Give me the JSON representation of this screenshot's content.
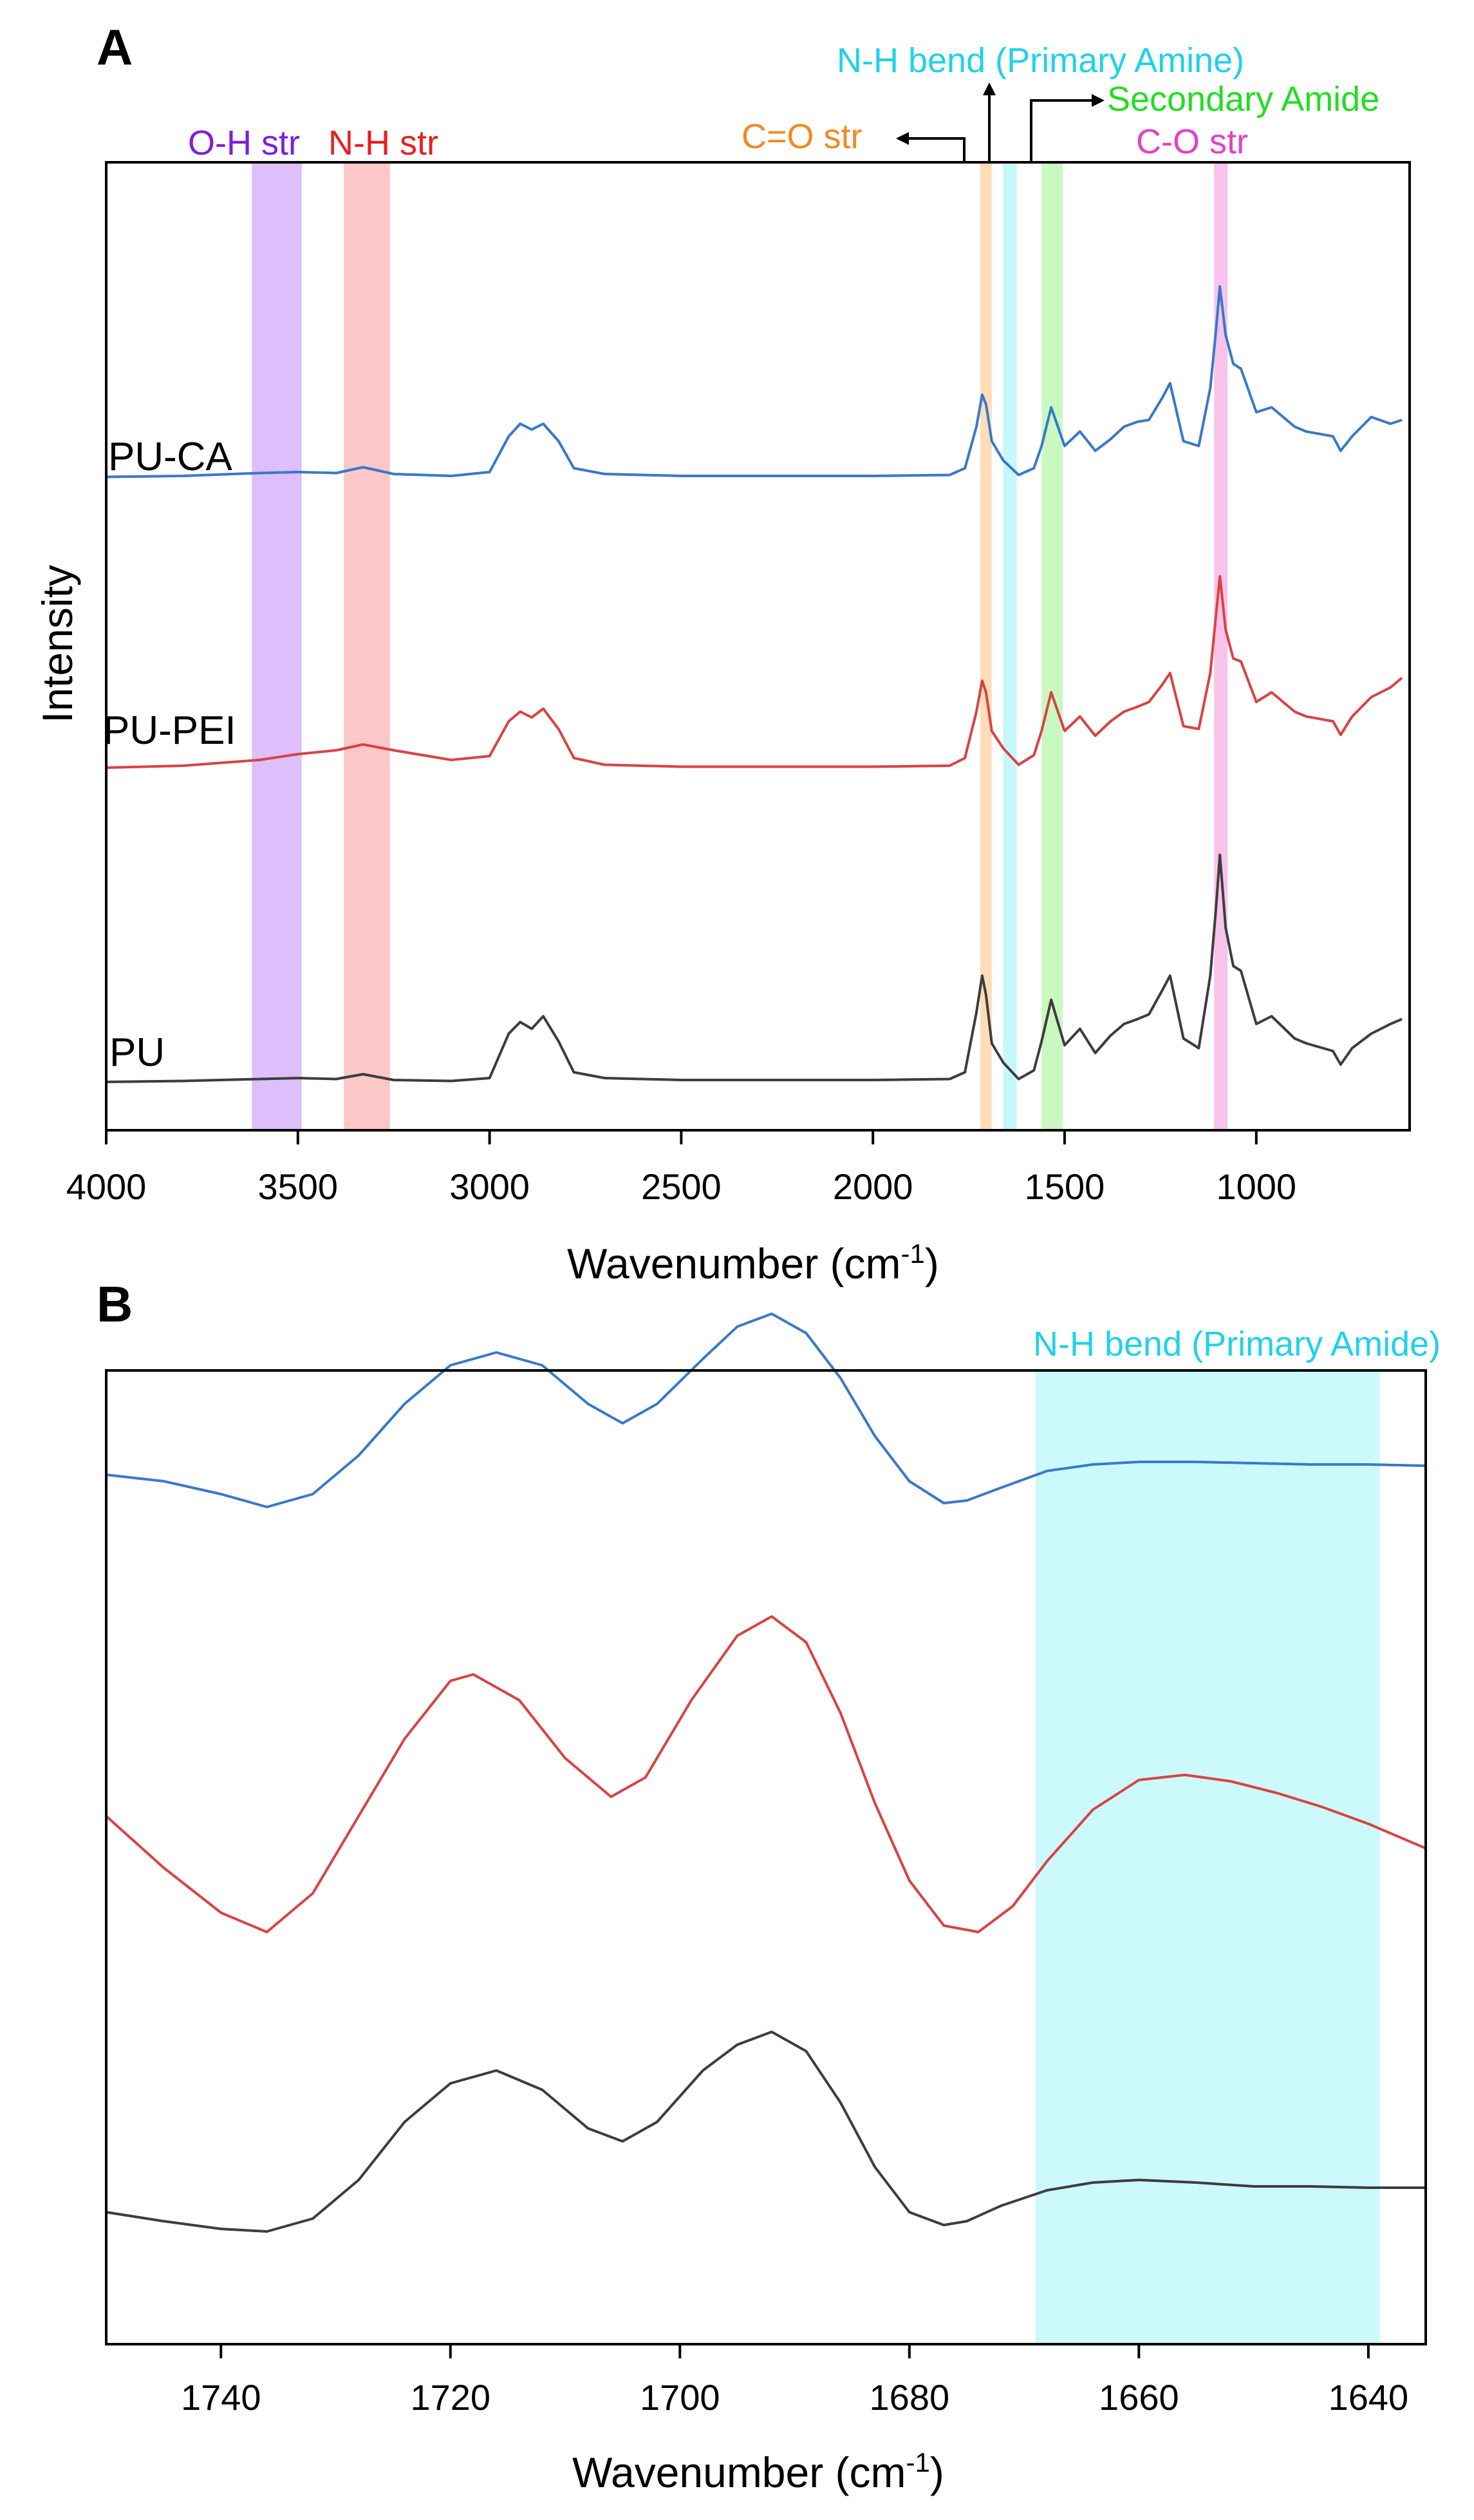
{
  "colors": {
    "pu_ca": "#3a78c9",
    "pu_pei": "#d94343",
    "pu": "#3d3d3d",
    "oh_band": "#d8b8fb",
    "nh_str_band": "#fbc1c1",
    "co_band": "#fcd9b0",
    "nh_bend_band": "#bff7fa",
    "sec_amide_band": "#c3f7b9",
    "c_o_band": "#f7bde8",
    "oh_text": "#7b1fe0",
    "nh_str_text": "#e62020",
    "co_text": "#f08a24",
    "nh_bend_text": "#1fd2e8",
    "sec_amide_text": "#22dd22",
    "c_o_text": "#e83fc2"
  },
  "chart_data": [
    {
      "panel": "A",
      "type": "line",
      "xlabel": "Wavenumber (cm",
      "xlabel_superscript": "-1",
      "xlabel_suffix": ")",
      "ylabel": "Intensity",
      "xlim": [
        4000,
        600
      ],
      "xticks": [
        4000,
        3500,
        3000,
        2500,
        2000,
        1500,
        1000
      ],
      "xtick_labels": [
        "4000",
        "3500",
        "3000",
        "2500",
        "2000",
        "1500",
        "1000"
      ],
      "series": [
        {
          "name": "PU-CA",
          "label": "PU-CA",
          "color_key": "pu_ca",
          "x": [
            4000,
            3800,
            3600,
            3500,
            3400,
            3330,
            3250,
            3100,
            3000,
            2950,
            2920,
            2890,
            2860,
            2820,
            2780,
            2700,
            2500,
            2000,
            1800,
            1760,
            1730,
            1715,
            1705,
            1690,
            1660,
            1620,
            1580,
            1560,
            1535,
            1500,
            1460,
            1420,
            1380,
            1345,
            1310,
            1280,
            1245,
            1225,
            1190,
            1150,
            1120,
            1105,
            1095,
            1080,
            1060,
            1040,
            1000,
            960,
            900,
            870,
            800,
            780,
            750,
            700,
            650,
            620
          ],
          "y": [
            0.03,
            0.04,
            0.07,
            0.08,
            0.07,
            0.13,
            0.06,
            0.04,
            0.08,
            0.45,
            0.58,
            0.52,
            0.58,
            0.4,
            0.12,
            0.06,
            0.04,
            0.04,
            0.05,
            0.12,
            0.55,
            0.88,
            0.78,
            0.4,
            0.2,
            0.05,
            0.12,
            0.35,
            0.75,
            0.35,
            0.5,
            0.3,
            0.42,
            0.55,
            0.6,
            0.62,
            0.85,
            1.0,
            0.4,
            0.35,
            0.95,
            1.55,
            2.0,
            1.5,
            1.2,
            1.15,
            0.7,
            0.75,
            0.55,
            0.5,
            0.45,
            0.3,
            0.45,
            0.65,
            0.58,
            0.62
          ]
        },
        {
          "name": "PU-PEI",
          "label": "PU-PEI",
          "color_key": "pu_pei",
          "x": [
            4000,
            3800,
            3600,
            3500,
            3400,
            3330,
            3250,
            3100,
            3000,
            2950,
            2920,
            2890,
            2860,
            2820,
            2780,
            2700,
            2500,
            2000,
            1800,
            1760,
            1730,
            1715,
            1705,
            1690,
            1660,
            1620,
            1580,
            1560,
            1535,
            1500,
            1460,
            1420,
            1380,
            1345,
            1310,
            1280,
            1245,
            1225,
            1190,
            1150,
            1120,
            1105,
            1095,
            1080,
            1060,
            1040,
            1000,
            960,
            900,
            870,
            800,
            780,
            750,
            700,
            650,
            620
          ],
          "y": [
            0.02,
            0.04,
            0.1,
            0.16,
            0.2,
            0.26,
            0.2,
            0.1,
            0.14,
            0.5,
            0.6,
            0.54,
            0.63,
            0.42,
            0.12,
            0.05,
            0.03,
            0.03,
            0.04,
            0.12,
            0.6,
            0.92,
            0.8,
            0.4,
            0.22,
            0.05,
            0.15,
            0.4,
            0.8,
            0.4,
            0.55,
            0.35,
            0.5,
            0.6,
            0.65,
            0.7,
            0.88,
            1.0,
            0.45,
            0.42,
            1.0,
            1.6,
            2.0,
            1.45,
            1.15,
            1.12,
            0.7,
            0.8,
            0.6,
            0.55,
            0.5,
            0.36,
            0.55,
            0.75,
            0.85,
            0.95
          ]
        },
        {
          "name": "PU",
          "label": "PU",
          "color_key": "pu",
          "x": [
            4000,
            3800,
            3600,
            3500,
            3400,
            3330,
            3250,
            3100,
            3000,
            2950,
            2920,
            2890,
            2860,
            2820,
            2780,
            2700,
            2500,
            2000,
            1800,
            1760,
            1730,
            1715,
            1705,
            1690,
            1660,
            1620,
            1580,
            1560,
            1535,
            1500,
            1460,
            1420,
            1380,
            1345,
            1310,
            1280,
            1245,
            1225,
            1190,
            1150,
            1120,
            1105,
            1095,
            1080,
            1060,
            1040,
            1000,
            960,
            900,
            870,
            800,
            780,
            750,
            700,
            650,
            620
          ],
          "y": [
            0.0,
            0.01,
            0.03,
            0.04,
            0.03,
            0.08,
            0.02,
            0.01,
            0.04,
            0.5,
            0.62,
            0.55,
            0.68,
            0.42,
            0.1,
            0.04,
            0.02,
            0.02,
            0.03,
            0.1,
            0.72,
            1.1,
            0.9,
            0.4,
            0.2,
            0.03,
            0.12,
            0.42,
            0.85,
            0.38,
            0.55,
            0.3,
            0.48,
            0.6,
            0.65,
            0.7,
            0.95,
            1.1,
            0.45,
            0.35,
            1.1,
            1.8,
            2.35,
            1.6,
            1.2,
            1.15,
            0.6,
            0.68,
            0.45,
            0.4,
            0.32,
            0.18,
            0.35,
            0.5,
            0.6,
            0.65
          ]
        }
      ],
      "bands": [
        {
          "name": "O-H str",
          "x0": 3620,
          "x1": 3490,
          "color_key": "oh_band",
          "text_color_key": "oh_text"
        },
        {
          "name": "N-H str",
          "x0": 3380,
          "x1": 3260,
          "color_key": "nh_str_band",
          "text_color_key": "nh_str_text"
        },
        {
          "name": "C=O str",
          "x0": 1720,
          "x1": 1690,
          "color_key": "co_band",
          "text_color_key": "co_text"
        },
        {
          "name": "N-H bend (Primary Amine)",
          "x0": 1660,
          "x1": 1625,
          "color_key": "nh_bend_band",
          "text_color_key": "nh_bend_text"
        },
        {
          "name": "Secondary Amide",
          "x0": 1560,
          "x1": 1505,
          "color_key": "sec_amide_band",
          "text_color_key": "sec_amide_text"
        },
        {
          "name": "C-O str",
          "x0": 1110,
          "x1": 1075,
          "color_key": "c_o_band",
          "text_color_key": "c_o_text"
        }
      ]
    },
    {
      "panel": "B",
      "type": "line",
      "xlabel": "Wavenumber (cm",
      "xlabel_superscript": "-1",
      "xlabel_suffix": ")",
      "xlim": [
        1750,
        1635
      ],
      "xticks": [
        1740,
        1720,
        1700,
        1680,
        1660,
        1640
      ],
      "xtick_labels": [
        "1740",
        "1720",
        "1700",
        "1680",
        "1660",
        "1640"
      ],
      "series": [
        {
          "name": "PU-CA",
          "color_key": "pu_ca",
          "x": [
            1750,
            1745,
            1740,
            1736,
            1732,
            1728,
            1724,
            1720,
            1716,
            1712,
            1708,
            1705,
            1702,
            1698,
            1695,
            1692,
            1689,
            1686,
            1683,
            1680,
            1677,
            1675,
            1672,
            1668,
            1664,
            1660,
            1655,
            1650,
            1645,
            1640,
            1635
          ],
          "y": [
            0.25,
            0.2,
            0.1,
            0.0,
            0.1,
            0.4,
            0.8,
            1.1,
            1.2,
            1.1,
            0.8,
            0.65,
            0.8,
            1.15,
            1.4,
            1.5,
            1.35,
            1.0,
            0.55,
            0.2,
            0.03,
            0.05,
            0.15,
            0.28,
            0.33,
            0.35,
            0.35,
            0.34,
            0.33,
            0.33,
            0.32
          ]
        },
        {
          "name": "PU-PEI",
          "color_key": "pu_pei",
          "x": [
            1750,
            1745,
            1740,
            1736,
            1732,
            1728,
            1724,
            1720,
            1718,
            1714,
            1710,
            1706,
            1703,
            1699,
            1695,
            1692,
            1689,
            1686,
            1683,
            1680,
            1677,
            1674,
            1671,
            1668,
            1664,
            1660,
            1656,
            1652,
            1648,
            1644,
            1640,
            1635
          ],
          "y": [
            0.9,
            0.5,
            0.15,
            0.0,
            0.3,
            0.9,
            1.5,
            1.95,
            2.0,
            1.8,
            1.35,
            1.05,
            1.2,
            1.8,
            2.3,
            2.45,
            2.25,
            1.7,
            1.0,
            0.4,
            0.05,
            0.0,
            0.2,
            0.55,
            0.95,
            1.18,
            1.22,
            1.17,
            1.08,
            0.97,
            0.84,
            0.65
          ]
        },
        {
          "name": "PU",
          "color_key": "pu",
          "x": [
            1750,
            1745,
            1740,
            1736,
            1732,
            1728,
            1724,
            1720,
            1716,
            1712,
            1708,
            1705,
            1702,
            1698,
            1695,
            1692,
            1689,
            1686,
            1683,
            1680,
            1677,
            1675,
            1672,
            1668,
            1664,
            1660,
            1655,
            1650,
            1645,
            1640,
            1635
          ],
          "y": [
            0.15,
            0.08,
            0.02,
            0.0,
            0.1,
            0.4,
            0.85,
            1.15,
            1.25,
            1.1,
            0.8,
            0.7,
            0.85,
            1.25,
            1.45,
            1.55,
            1.4,
            1.0,
            0.5,
            0.15,
            0.05,
            0.08,
            0.2,
            0.32,
            0.38,
            0.4,
            0.38,
            0.35,
            0.35,
            0.34,
            0.34
          ]
        }
      ],
      "bands": [
        {
          "name": "N-H bend (Primary Amide)",
          "x0": 1669,
          "x1": 1639,
          "color_key": "nh_bend_band",
          "text_color_key": "nh_bend_text"
        }
      ]
    }
  ],
  "panels": {
    "a_letter": "A",
    "b_letter": "B"
  }
}
